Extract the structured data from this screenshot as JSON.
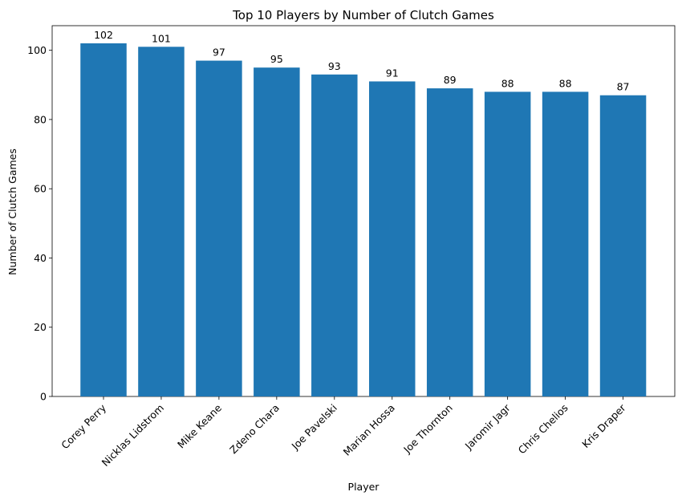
{
  "chart_data": {
    "type": "bar",
    "title": "Top 10 Players by Number of Clutch Games",
    "xlabel": "Player",
    "ylabel": "Number of Clutch Games",
    "categories": [
      "Corey Perry",
      "Nicklas Lidstrom",
      "Mike Keane",
      "Zdeno Chara",
      "Joe Pavelski",
      "Marian Hossa",
      "Joe Thornton",
      "Jaromir Jagr",
      "Chris Chelios",
      "Kris Draper"
    ],
    "values": [
      102,
      101,
      97,
      95,
      93,
      91,
      89,
      88,
      88,
      87
    ],
    "ylim": [
      0,
      107.1
    ],
    "yticks": [
      0,
      20,
      40,
      60,
      80,
      100
    ],
    "xtick_rotation_deg": 45,
    "bar_color": "#1f77b4",
    "grid": false,
    "legend": "none",
    "data_labels": true
  }
}
